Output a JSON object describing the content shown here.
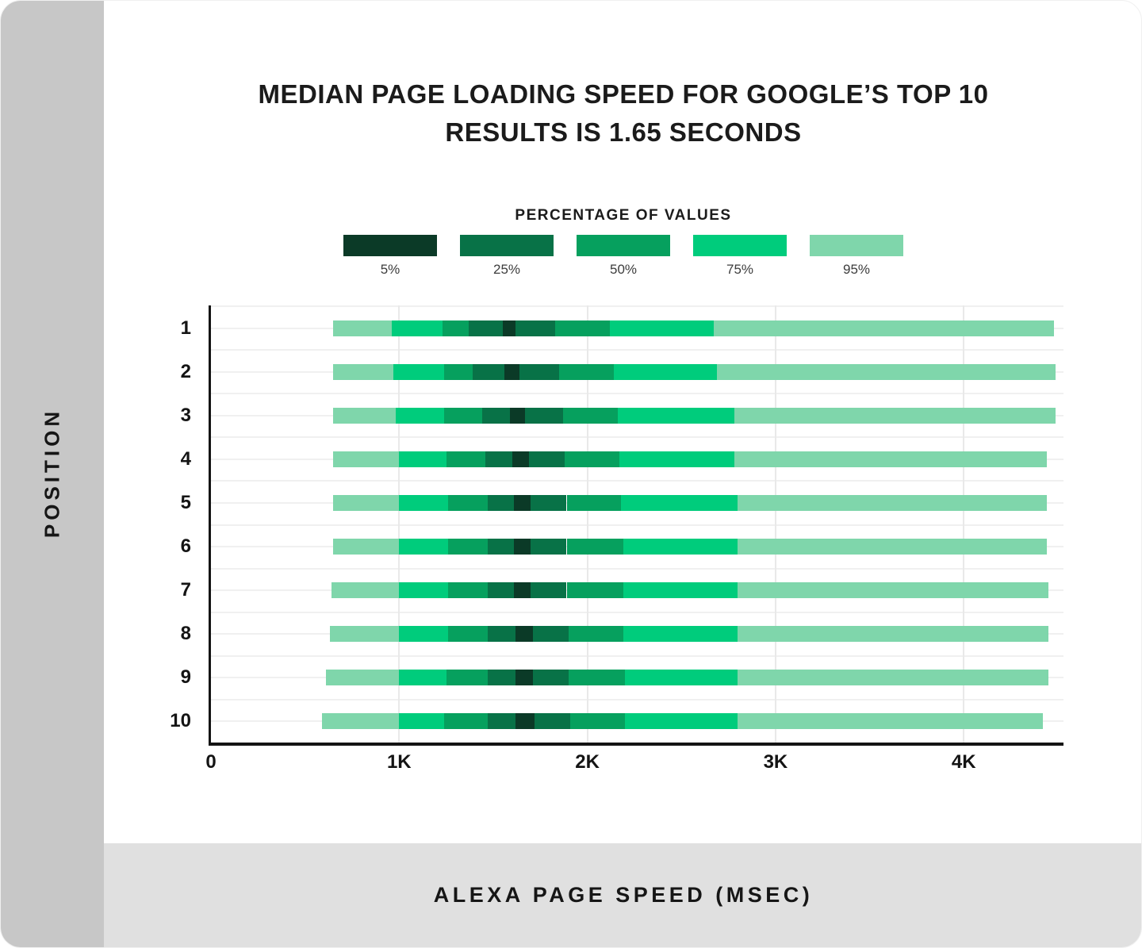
{
  "title": {
    "line1": "MEDIAN PAGE LOADING SPEED FOR GOOGLE’S TOP 10",
    "line2": "RESULTS IS 1.65 SECONDS"
  },
  "sidebar": {
    "label": "POSITION"
  },
  "footer": {
    "label": "ALEXA PAGE SPEED (MSEC)"
  },
  "legend": {
    "title": "PERCENTAGE OF VALUES",
    "items": [
      {
        "label": "5%",
        "color": "#0b3a27"
      },
      {
        "label": "25%",
        "color": "#087247"
      },
      {
        "label": "50%",
        "color": "#06a05e"
      },
      {
        "label": "75%",
        "color": "#00cc7c"
      },
      {
        "label": "95%",
        "color": "#7fd6ab"
      }
    ]
  },
  "chart_data": {
    "type": "bar",
    "orientation": "horizontal",
    "title": "MEDIAN PAGE LOADING SPEED FOR GOOGLE’S TOP 10 RESULTS IS 1.65 SECONDS",
    "xlabel": "ALEXA PAGE SPEED (MSEC)",
    "ylabel": "POSITION",
    "median_seconds": 1.65,
    "xlim": [
      0,
      4530
    ],
    "x_ticks": [
      {
        "label": "0",
        "value": 0
      },
      {
        "label": "1K",
        "value": 1000
      },
      {
        "label": "2K",
        "value": 2000
      },
      {
        "label": "3K",
        "value": 3000
      },
      {
        "label": "4K",
        "value": 4000
      }
    ],
    "grid": true,
    "band_order": [
      "95%",
      "75%",
      "50%",
      "25%",
      "5%",
      "25%",
      "50%",
      "75%",
      "95%"
    ],
    "rows": [
      {
        "position": "1",
        "boundaries_msec": [
          650,
          960,
          1230,
          1370,
          1550,
          1620,
          1830,
          2120,
          2670,
          4480
        ]
      },
      {
        "position": "2",
        "boundaries_msec": [
          650,
          970,
          1240,
          1390,
          1560,
          1640,
          1850,
          2140,
          2690,
          4490
        ]
      },
      {
        "position": "3",
        "boundaries_msec": [
          650,
          980,
          1240,
          1440,
          1590,
          1670,
          1870,
          2160,
          2780,
          4490
        ]
      },
      {
        "position": "4",
        "boundaries_msec": [
          650,
          1000,
          1250,
          1460,
          1600,
          1690,
          1880,
          2170,
          2780,
          4440
        ]
      },
      {
        "position": "5",
        "boundaries_msec": [
          650,
          1000,
          1260,
          1470,
          1610,
          1700,
          1890,
          2180,
          2800,
          4440
        ]
      },
      {
        "position": "6",
        "boundaries_msec": [
          650,
          1000,
          1260,
          1470,
          1610,
          1700,
          1890,
          2190,
          2800,
          4440
        ]
      },
      {
        "position": "7",
        "boundaries_msec": [
          640,
          1000,
          1260,
          1470,
          1610,
          1700,
          1890,
          2190,
          2800,
          4450
        ]
      },
      {
        "position": "8",
        "boundaries_msec": [
          630,
          1000,
          1260,
          1470,
          1620,
          1710,
          1900,
          2190,
          2800,
          4450
        ]
      },
      {
        "position": "9",
        "boundaries_msec": [
          610,
          1000,
          1250,
          1470,
          1620,
          1710,
          1900,
          2200,
          2800,
          4450
        ]
      },
      {
        "position": "10",
        "boundaries_msec": [
          590,
          1000,
          1240,
          1470,
          1620,
          1720,
          1910,
          2200,
          2800,
          4420
        ]
      }
    ]
  }
}
